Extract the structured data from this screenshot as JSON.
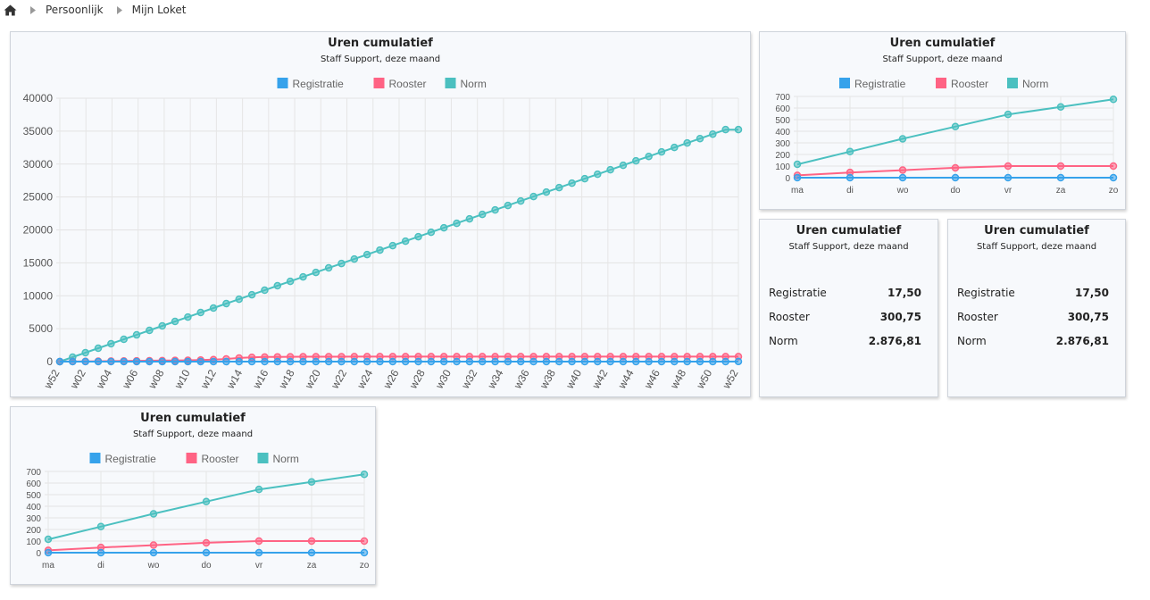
{
  "breadcrumb": {
    "home_icon": "home-icon",
    "items": [
      "Persoonlijk",
      "Mijn Loket"
    ]
  },
  "colors": {
    "registratie": "#36a2eb",
    "rooster": "#ff6384",
    "norm": "#4bc0c0"
  },
  "widgets": {
    "large": {
      "title": "Uren cumulatief",
      "subtitle": "Staff Support, deze maand"
    },
    "weekly_a": {
      "title": "Uren cumulatief",
      "subtitle": "Staff Support, deze maand"
    },
    "weekly_b": {
      "title": "Uren cumulatief",
      "subtitle": "Staff Support, deze maand"
    },
    "summary_a": {
      "title": "Uren cumulatief",
      "subtitle": "Staff Support, deze maand",
      "rows": [
        {
          "label": "Registratie",
          "value": "17,50"
        },
        {
          "label": "Rooster",
          "value": "300,75"
        },
        {
          "label": "Norm",
          "value": "2.876,81"
        }
      ]
    },
    "summary_b": {
      "title": "Uren cumulatief",
      "subtitle": "Staff Support, deze maand",
      "rows": [
        {
          "label": "Registratie",
          "value": "17,50"
        },
        {
          "label": "Rooster",
          "value": "300,75"
        },
        {
          "label": "Norm",
          "value": "2.876,81"
        }
      ]
    }
  },
  "chart_data": [
    {
      "id": "large",
      "type": "line",
      "title": "Uren cumulatief",
      "subtitle": "Staff Support, deze maand",
      "legend_position": "top",
      "grid": true,
      "ylim": [
        0,
        40000
      ],
      "yticks": [
        0,
        5000,
        10000,
        15000,
        20000,
        25000,
        30000,
        35000,
        40000
      ],
      "x_tick_labels": [
        "w52",
        "w02",
        "w04",
        "w06",
        "w08",
        "w10",
        "w12",
        "w14",
        "w16",
        "w18",
        "w20",
        "w22",
        "w24",
        "w26",
        "w28",
        "w30",
        "w32",
        "w34",
        "w36",
        "w38",
        "w40",
        "w42",
        "w44",
        "w46",
        "w48",
        "w50",
        "w52"
      ],
      "series": [
        {
          "name": "Registratie",
          "values": [
            0,
            0,
            0,
            0,
            0,
            0,
            0,
            0,
            0,
            0,
            0,
            0,
            0,
            0,
            0,
            0,
            0,
            0,
            0,
            0,
            0,
            0,
            0,
            0,
            0,
            0,
            0,
            0,
            0,
            0,
            0,
            0,
            0,
            0,
            0,
            0,
            0,
            0,
            0,
            0,
            0,
            0,
            0,
            0,
            0,
            0,
            0,
            0,
            0,
            0,
            0,
            0,
            0,
            18
          ]
        },
        {
          "name": "Rooster",
          "values": [
            0,
            20,
            40,
            60,
            80,
            100,
            120,
            140,
            160,
            180,
            200,
            240,
            300,
            400,
            550,
            650,
            700,
            720,
            730,
            740,
            745,
            750,
            752,
            755,
            756,
            758,
            760,
            760,
            760,
            760,
            760,
            760,
            760,
            760,
            760,
            760,
            760,
            760,
            760,
            760,
            760,
            760,
            760,
            760,
            760,
            760,
            760,
            760,
            760,
            760,
            760,
            760,
            760,
            760
          ]
        },
        {
          "name": "Norm",
          "values": [
            0,
            680,
            1350,
            2030,
            2710,
            3390,
            4060,
            4740,
            5420,
            6100,
            6770,
            7450,
            8130,
            8810,
            9480,
            10160,
            10840,
            11520,
            12190,
            12870,
            13550,
            14230,
            14900,
            15580,
            16260,
            16940,
            17610,
            18290,
            18970,
            19650,
            20320,
            21000,
            21680,
            22360,
            23030,
            23710,
            24390,
            25070,
            25740,
            26420,
            27100,
            27780,
            28450,
            29130,
            29810,
            30490,
            31160,
            31840,
            32520,
            33200,
            33870,
            34550,
            35230,
            35230
          ]
        }
      ]
    },
    {
      "id": "weekly_a",
      "type": "line",
      "title": "Uren cumulatief",
      "subtitle": "Staff Support, deze maand",
      "legend_position": "top",
      "grid": true,
      "ylim": [
        0,
        700
      ],
      "yticks": [
        0,
        100,
        200,
        300,
        400,
        500,
        600,
        700
      ],
      "categories": [
        "ma",
        "di",
        "wo",
        "do",
        "vr",
        "za",
        "zo"
      ],
      "series": [
        {
          "name": "Registratie",
          "values": [
            0,
            0,
            0,
            0,
            0,
            0,
            0
          ]
        },
        {
          "name": "Rooster",
          "values": [
            20,
            45,
            65,
            85,
            100,
            100,
            100
          ]
        },
        {
          "name": "Norm",
          "values": [
            115,
            225,
            335,
            440,
            545,
            610,
            675
          ]
        }
      ]
    },
    {
      "id": "weekly_b",
      "type": "line",
      "title": "Uren cumulatief",
      "subtitle": "Staff Support, deze maand",
      "legend_position": "top",
      "grid": true,
      "ylim": [
        0,
        700
      ],
      "yticks": [
        0,
        100,
        200,
        300,
        400,
        500,
        600,
        700
      ],
      "categories": [
        "ma",
        "di",
        "wo",
        "do",
        "vr",
        "za",
        "zo"
      ],
      "series": [
        {
          "name": "Registratie",
          "values": [
            0,
            0,
            0,
            0,
            0,
            0,
            0
          ]
        },
        {
          "name": "Rooster",
          "values": [
            20,
            45,
            65,
            85,
            100,
            100,
            100
          ]
        },
        {
          "name": "Norm",
          "values": [
            115,
            225,
            335,
            440,
            545,
            610,
            675
          ]
        }
      ]
    }
  ]
}
